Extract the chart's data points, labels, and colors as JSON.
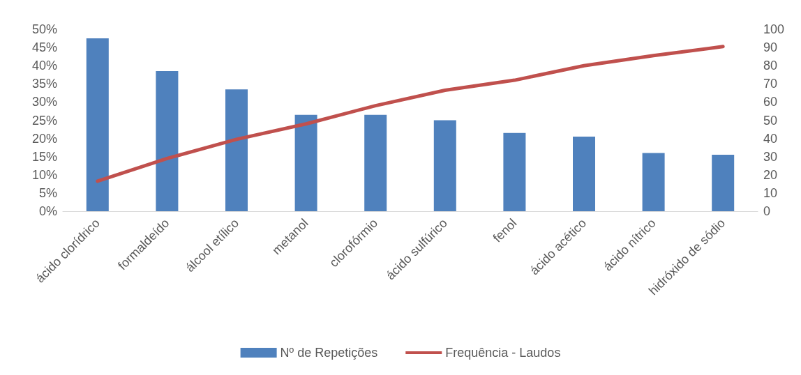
{
  "chart_data": {
    "type": "bar",
    "categories": [
      "ácido clorídrico",
      "formaldeído",
      "álcool etílico",
      "metanol",
      "clorofórmio",
      "ácido sulfúrico",
      "fenol",
      "ácido acético",
      "ácido nítrico",
      "hidróxido de sódio"
    ],
    "series": [
      {
        "name": "Nº de Repetições",
        "color": "#4f81bd",
        "values": [
          47.5,
          38.5,
          33.5,
          26.5,
          26.5,
          25,
          21.5,
          20.5,
          16,
          15.5
        ]
      },
      {
        "name": "Frequência - Laudos",
        "type": "line",
        "axis": "y2",
        "color": "#c0504d",
        "values": [
          16.5,
          29,
          39.5,
          48,
          58,
          66.5,
          72,
          80,
          85.5,
          90.5
        ]
      }
    ],
    "ylim": [
      0,
      50
    ],
    "yticks": [
      {
        "value": 0,
        "label": "0%"
      },
      {
        "value": 5,
        "label": "5%"
      },
      {
        "value": 10,
        "label": "10%"
      },
      {
        "value": 15,
        "label": "15%"
      },
      {
        "value": 20,
        "label": "20%"
      },
      {
        "value": 25,
        "label": "25%"
      },
      {
        "value": 30,
        "label": "30%"
      },
      {
        "value": 35,
        "label": "35%"
      },
      {
        "value": 40,
        "label": "40%"
      },
      {
        "value": 45,
        "label": "45%"
      },
      {
        "value": 50,
        "label": "50%"
      }
    ],
    "y2lim": [
      0,
      100
    ],
    "y2ticks": [
      0,
      10,
      20,
      30,
      40,
      50,
      60,
      70,
      80,
      90,
      100
    ],
    "grid": false,
    "legend": "bottom",
    "marker": "none",
    "line_style": "solid"
  }
}
